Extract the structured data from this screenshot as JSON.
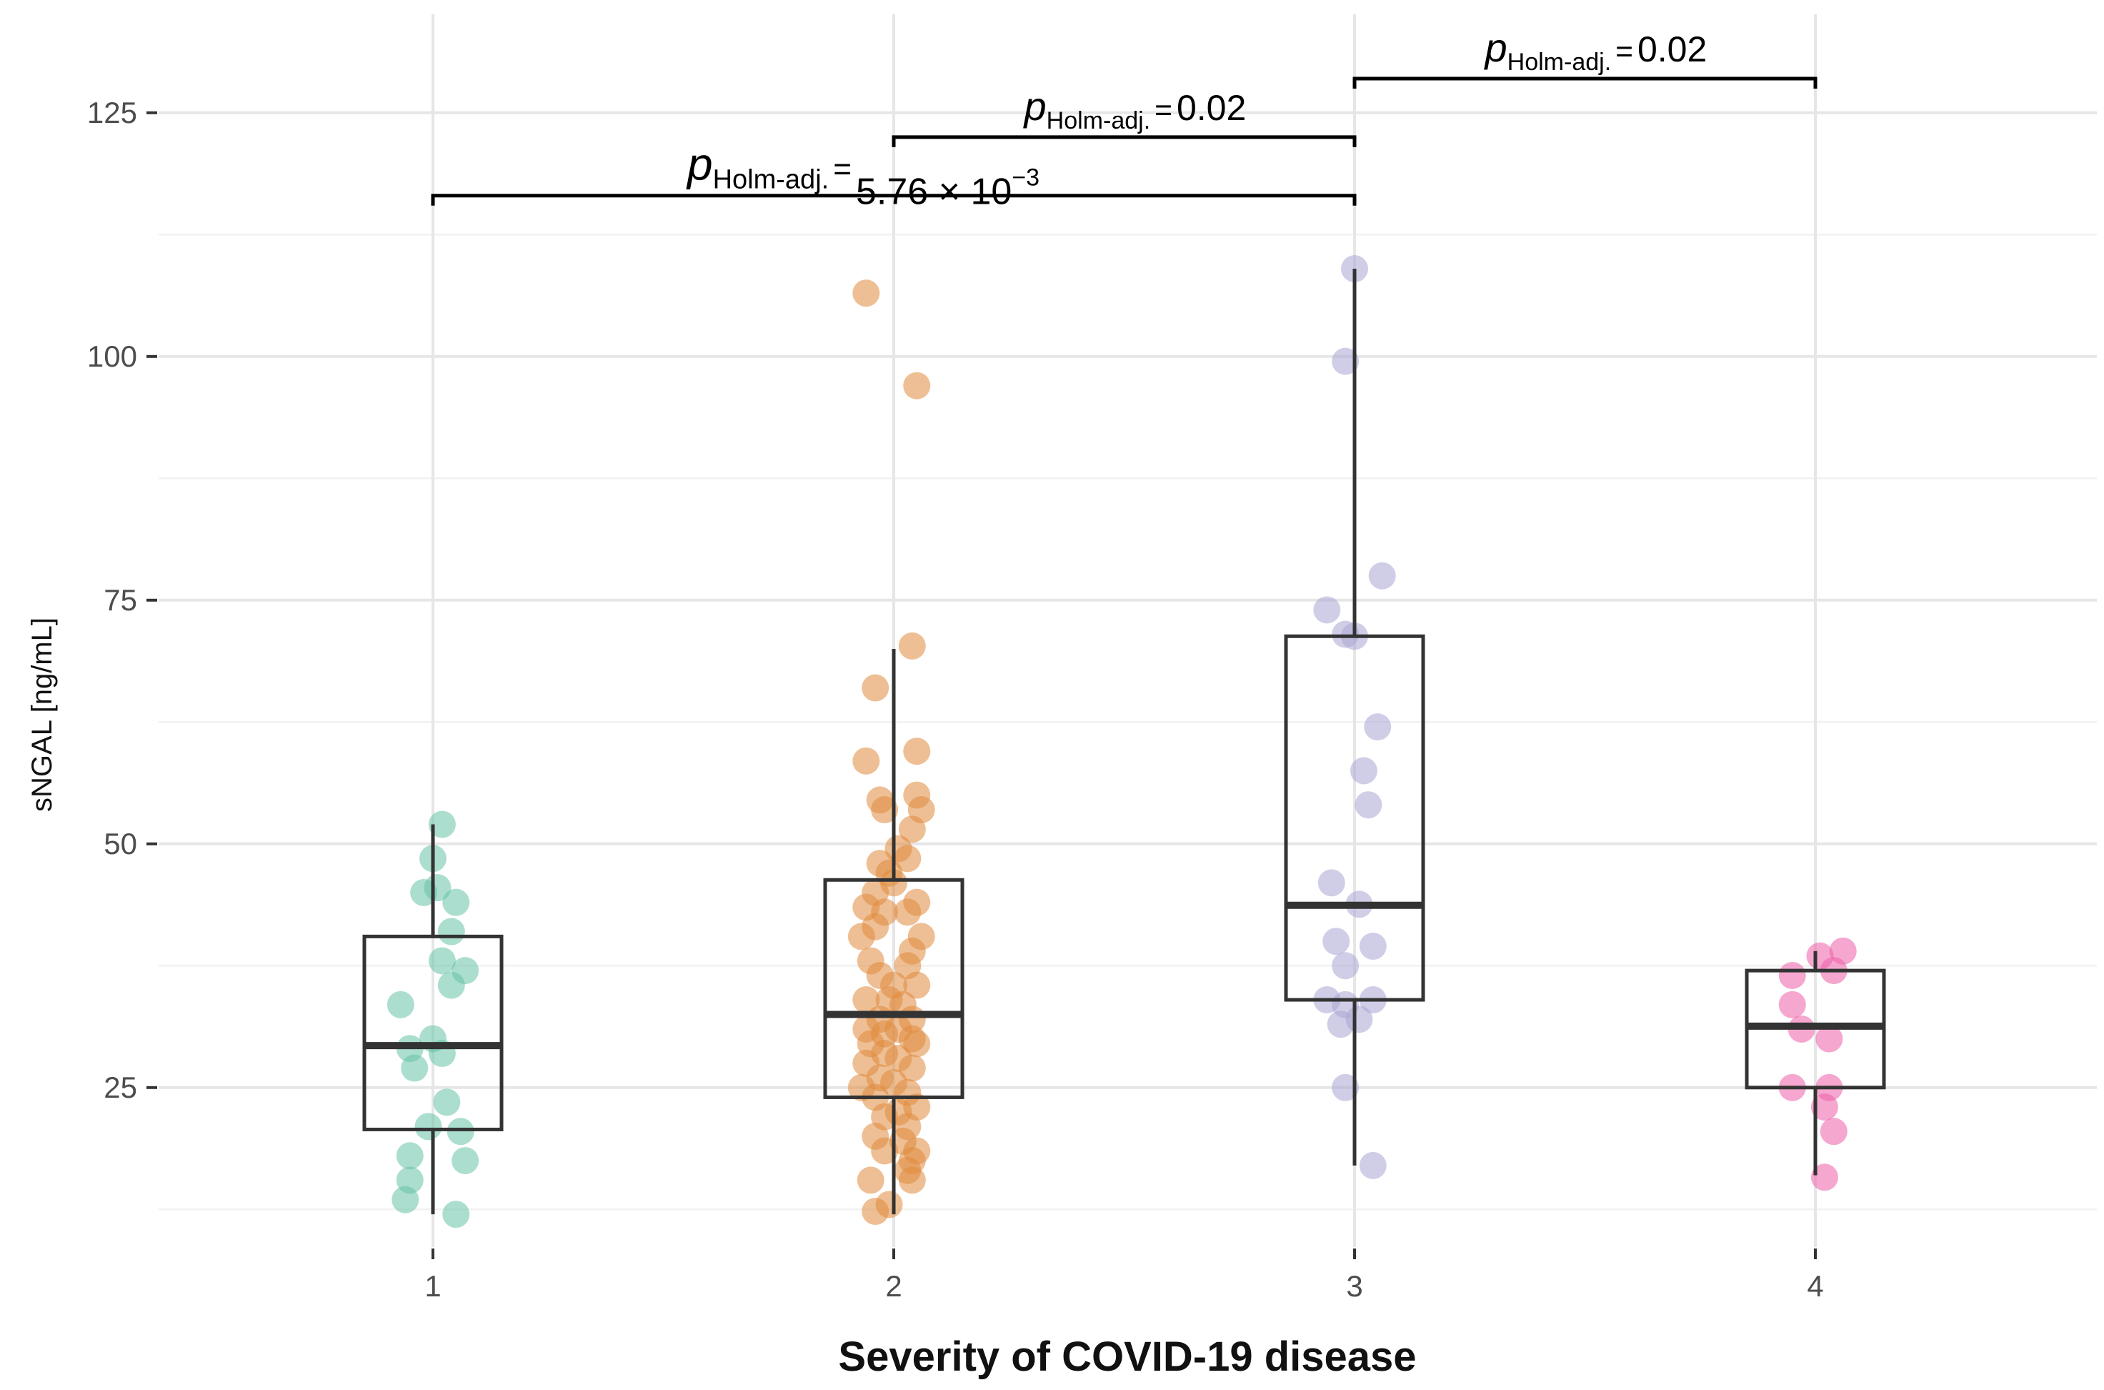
{
  "chart_data": {
    "type": "box",
    "title": "",
    "xlabel": "Severity of COVID-19 disease",
    "ylabel": "sNGAL [ng/mL]",
    "ylim": [
      8,
      135
    ],
    "yticks": [
      25,
      50,
      75,
      100,
      125
    ],
    "ytick_labels": [
      "25",
      "50",
      "75",
      "100",
      "125"
    ],
    "y_minor_grid": [
      37.5,
      62.5,
      87.5,
      112.5
    ],
    "grid": true,
    "categories": [
      "1",
      "2",
      "3",
      "4"
    ],
    "colors": {
      "1": "#66c2a5",
      "2": "#e08a3c",
      "3": "#a9a6d3",
      "4": "#ec5fa8"
    },
    "boxes": [
      {
        "category": "1",
        "whisker_low": 12,
        "q1": 20.7,
        "median": 29.3,
        "q3": 40.5,
        "whisker_high": 52
      },
      {
        "category": "2",
        "whisker_low": 12,
        "q1": 24,
        "median": 32.5,
        "q3": 46.3,
        "whisker_high": 70
      },
      {
        "category": "3",
        "whisker_low": 17,
        "q1": 34,
        "median": 43.7,
        "q3": 71.3,
        "whisker_high": 109
      },
      {
        "category": "4",
        "whisker_low": 16,
        "q1": 25,
        "median": 31.3,
        "q3": 37,
        "whisker_high": 39
      }
    ],
    "points": {
      "1": [
        [
          0.02,
          52
        ],
        [
          0.0,
          48.5
        ],
        [
          -0.02,
          45
        ],
        [
          0.01,
          45.5
        ],
        [
          0.05,
          44
        ],
        [
          0.04,
          41
        ],
        [
          0.02,
          38
        ],
        [
          0.07,
          37
        ],
        [
          0.04,
          35.5
        ],
        [
          -0.07,
          33.5
        ],
        [
          0.0,
          30
        ],
        [
          -0.05,
          29
        ],
        [
          0.02,
          28.5
        ],
        [
          -0.04,
          27
        ],
        [
          -0.01,
          21
        ],
        [
          0.06,
          20.5
        ],
        [
          0.03,
          23.5
        ],
        [
          -0.05,
          18
        ],
        [
          0.07,
          17.5
        ],
        [
          -0.05,
          15.5
        ],
        [
          -0.06,
          13.5
        ],
        [
          0.05,
          12
        ]
      ],
      "2": [
        [
          -0.06,
          106.5
        ],
        [
          0.05,
          97
        ],
        [
          0.04,
          70.3
        ],
        [
          -0.04,
          66
        ],
        [
          0.05,
          59.5
        ],
        [
          -0.06,
          58.5
        ],
        [
          -0.03,
          54.5
        ],
        [
          0.05,
          55
        ],
        [
          -0.02,
          53.5
        ],
        [
          0.06,
          53.5
        ],
        [
          0.04,
          51.5
        ],
        [
          0.01,
          49.5
        ],
        [
          -0.03,
          48
        ],
        [
          0.03,
          48.5
        ],
        [
          -0.01,
          47
        ],
        [
          0.0,
          46
        ],
        [
          -0.04,
          45
        ],
        [
          0.05,
          44
        ],
        [
          -0.06,
          43.5
        ],
        [
          -0.02,
          43
        ],
        [
          0.03,
          43
        ],
        [
          -0.04,
          41.5
        ],
        [
          -0.07,
          40.5
        ],
        [
          0.06,
          40.5
        ],
        [
          0.04,
          39
        ],
        [
          -0.05,
          38
        ],
        [
          0.03,
          37.5
        ],
        [
          -0.03,
          36.5
        ],
        [
          0.05,
          35.5
        ],
        [
          0.0,
          35.5
        ],
        [
          -0.01,
          34
        ],
        [
          -0.06,
          34
        ],
        [
          0.02,
          33.5
        ],
        [
          -0.03,
          32
        ],
        [
          0.04,
          32
        ],
        [
          -0.06,
          31
        ],
        [
          0.01,
          31
        ],
        [
          -0.02,
          30.5
        ],
        [
          0.04,
          30
        ],
        [
          0.05,
          29.5
        ],
        [
          -0.05,
          29.5
        ],
        [
          -0.02,
          28.5
        ],
        [
          0.01,
          28
        ],
        [
          -0.06,
          27.5
        ],
        [
          0.04,
          27
        ],
        [
          -0.03,
          26
        ],
        [
          0.0,
          25.5
        ],
        [
          -0.07,
          25
        ],
        [
          0.03,
          24.5
        ],
        [
          -0.04,
          24
        ],
        [
          0.05,
          23
        ],
        [
          0.01,
          22.5
        ],
        [
          -0.02,
          22
        ],
        [
          0.03,
          21
        ],
        [
          -0.04,
          20
        ],
        [
          0.02,
          19.5
        ],
        [
          -0.02,
          18.5
        ],
        [
          0.05,
          18.5
        ],
        [
          0.04,
          17.5
        ],
        [
          0.03,
          16.5
        ],
        [
          -0.05,
          15.5
        ],
        [
          0.04,
          15.5
        ],
        [
          -0.01,
          13
        ],
        [
          -0.04,
          12.3
        ]
      ],
      "3": [
        [
          0.0,
          109
        ],
        [
          -0.02,
          99.5
        ],
        [
          0.06,
          77.5
        ],
        [
          -0.06,
          74
        ],
        [
          -0.02,
          71.5
        ],
        [
          0.0,
          71.3
        ],
        [
          0.05,
          62
        ],
        [
          0.02,
          57.5
        ],
        [
          0.03,
          54
        ],
        [
          -0.05,
          46
        ],
        [
          0.01,
          43.8
        ],
        [
          -0.04,
          40
        ],
        [
          0.04,
          39.5
        ],
        [
          -0.02,
          37.5
        ],
        [
          -0.06,
          34
        ],
        [
          -0.02,
          33.5
        ],
        [
          0.04,
          34
        ],
        [
          0.01,
          32
        ],
        [
          -0.03,
          31.5
        ],
        [
          -0.02,
          25
        ],
        [
          0.04,
          17
        ]
      ],
      "4": [
        [
          0.06,
          39
        ],
        [
          0.01,
          38.5
        ],
        [
          0.04,
          37
        ],
        [
          -0.05,
          36.5
        ],
        [
          -0.05,
          33.5
        ],
        [
          -0.03,
          31
        ],
        [
          0.03,
          30
        ],
        [
          0.03,
          25
        ],
        [
          -0.05,
          25
        ],
        [
          0.02,
          23
        ],
        [
          0.04,
          20.5
        ],
        [
          0.02,
          15.8
        ]
      ]
    },
    "annotations": [
      {
        "from": "1",
        "to": "3",
        "y": 116.5,
        "label_main": "p",
        "label_sub": "Holm-adj.",
        "label_eq": "=",
        "label_value": "5.76 × 10",
        "label_exp": "−3"
      },
      {
        "from": "2",
        "to": "3",
        "y": 122.5,
        "label_main": "p",
        "label_sub": "Holm-adj.",
        "label_eq": "=",
        "label_value": "0.02"
      },
      {
        "from": "3",
        "to": "4",
        "y": 128.5,
        "label_main": "p",
        "label_sub": "Holm-adj.",
        "label_eq": "=",
        "label_value": "0.02"
      }
    ]
  }
}
